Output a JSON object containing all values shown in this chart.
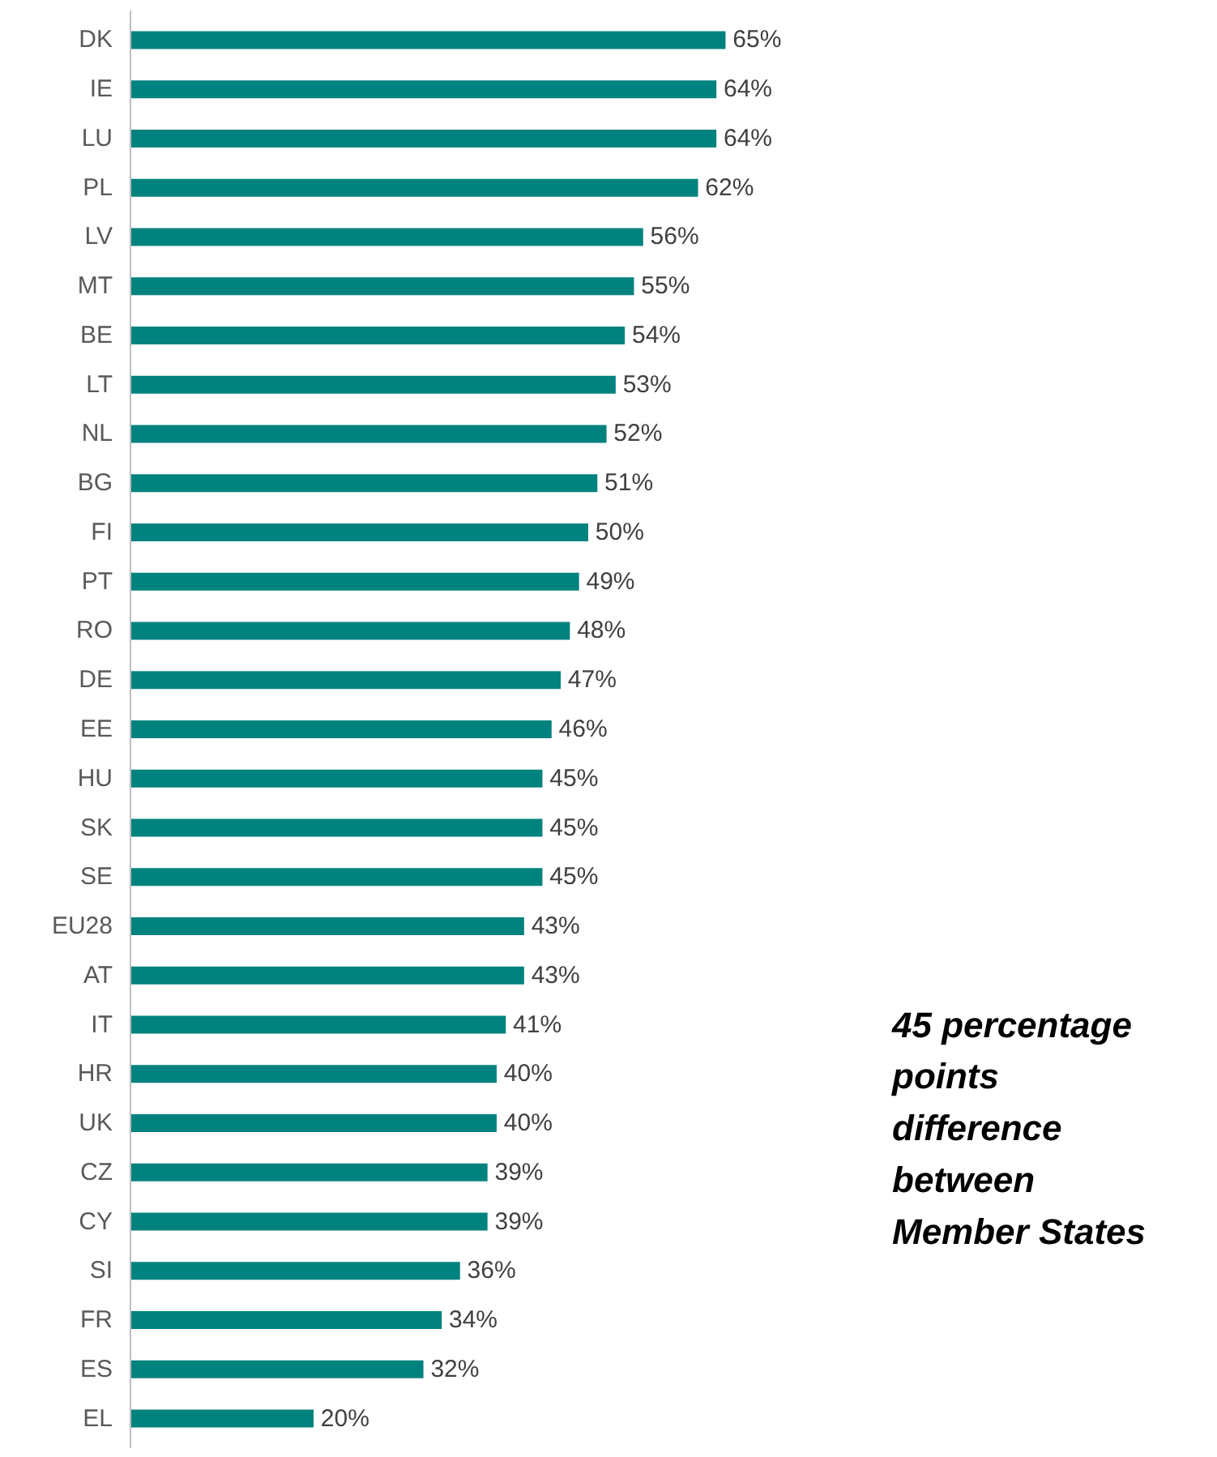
{
  "chart_data": {
    "type": "bar",
    "orientation": "horizontal",
    "categories": [
      "DK",
      "IE",
      "LU",
      "PL",
      "LV",
      "MT",
      "BE",
      "LT",
      "NL",
      "BG",
      "FI",
      "PT",
      "RO",
      "DE",
      "EE",
      "HU",
      "SK",
      "SE",
      "EU28",
      "AT",
      "IT",
      "HR",
      "UK",
      "CZ",
      "CY",
      "SI",
      "FR",
      "ES",
      "EL"
    ],
    "values": [
      65,
      64,
      64,
      62,
      56,
      55,
      54,
      53,
      52,
      51,
      50,
      49,
      48,
      47,
      46,
      45,
      45,
      45,
      43,
      43,
      41,
      40,
      40,
      39,
      39,
      36,
      34,
      32,
      20
    ],
    "value_labels": [
      "65%",
      "64%",
      "64%",
      "62%",
      "56%",
      "55%",
      "54%",
      "53%",
      "52%",
      "51%",
      "50%",
      "49%",
      "48%",
      "47%",
      "46%",
      "45%",
      "45%",
      "45%",
      "43%",
      "43%",
      "41%",
      "40%",
      "40%",
      "39%",
      "39%",
      "36%",
      "34%",
      "32%",
      "20%"
    ],
    "color": "#00827f",
    "annotations": [
      "45 percentage points difference between Member States"
    ],
    "grid": false,
    "tick_labels": "y"
  }
}
